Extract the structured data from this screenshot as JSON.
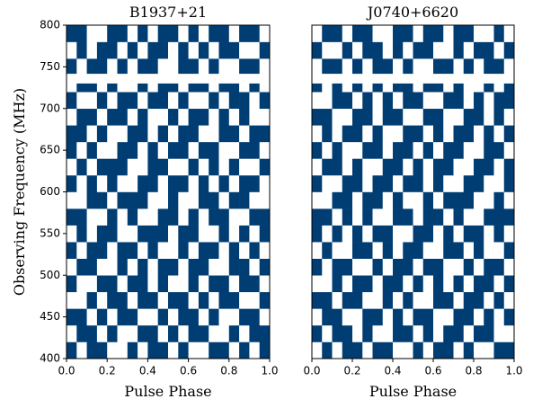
{
  "chart_data": [
    {
      "type": "heatmap",
      "title": "B1937+21",
      "xlabel": "Pulse Phase",
      "ylabel": "Observing Frequency (MHz)",
      "xlim": [
        0,
        1
      ],
      "ylim": [
        400,
        800
      ],
      "xticks": [
        {
          "value": 0,
          "label": "0.0"
        },
        {
          "value": 0.2,
          "label": "0.2"
        },
        {
          "value": 0.4,
          "label": "0.4"
        },
        {
          "value": 0.6,
          "label": "0.6"
        },
        {
          "value": 0.8,
          "label": "0.8"
        },
        {
          "value": 1,
          "label": "1.0"
        }
      ],
      "yticks": [
        400,
        450,
        500,
        550,
        600,
        650,
        700,
        750,
        800
      ],
      "xbins": [
        0,
        0.05,
        0.1,
        0.15,
        0.2,
        0.25,
        0.3,
        0.35,
        0.4,
        0.45,
        0.5,
        0.55,
        0.6,
        0.65,
        0.7,
        0.75,
        0.8,
        0.85,
        0.9,
        0.95,
        1
      ],
      "ybins": [
        400,
        420,
        440,
        460,
        480,
        500,
        520,
        540,
        560,
        580,
        600,
        620,
        640,
        660,
        680,
        700,
        720,
        730,
        742,
        760,
        780,
        800
      ],
      "colors": [
        "#ffffff",
        "#003d73"
      ],
      "values": [
        [
          1,
          0,
          1,
          1,
          0,
          0,
          1,
          0,
          1,
          1,
          0,
          1,
          0,
          0,
          1,
          1,
          0,
          1,
          0,
          1
        ],
        [
          0,
          1,
          1,
          0,
          1,
          0,
          0,
          1,
          1,
          0,
          1,
          0,
          1,
          1,
          0,
          0,
          1,
          0,
          1,
          1
        ],
        [
          1,
          1,
          0,
          1,
          0,
          1,
          1,
          0,
          0,
          1,
          0,
          1,
          1,
          0,
          1,
          0,
          0,
          1,
          1,
          0
        ],
        [
          0,
          0,
          1,
          0,
          1,
          1,
          0,
          1,
          1,
          0,
          1,
          1,
          0,
          1,
          0,
          1,
          1,
          0,
          0,
          1
        ],
        [
          1,
          0,
          0,
          1,
          1,
          0,
          1,
          1,
          0,
          1,
          0,
          0,
          1,
          0,
          1,
          1,
          0,
          1,
          1,
          0
        ],
        [
          0,
          1,
          1,
          0,
          0,
          1,
          0,
          1,
          0,
          1,
          1,
          0,
          1,
          1,
          0,
          0,
          1,
          1,
          0,
          1
        ],
        [
          1,
          0,
          1,
          1,
          0,
          1,
          1,
          0,
          1,
          0,
          0,
          1,
          0,
          1,
          1,
          0,
          1,
          0,
          1,
          0
        ],
        [
          0,
          1,
          0,
          1,
          1,
          0,
          0,
          1,
          1,
          1,
          0,
          1,
          1,
          0,
          0,
          1,
          0,
          1,
          0,
          1
        ],
        [
          1,
          1,
          0,
          0,
          1,
          0,
          1,
          0,
          0,
          1,
          1,
          0,
          1,
          0,
          1,
          1,
          0,
          0,
          1,
          1
        ],
        [
          0,
          0,
          1,
          1,
          0,
          1,
          1,
          1,
          0,
          0,
          1,
          0,
          0,
          1,
          1,
          0,
          1,
          1,
          0,
          0
        ],
        [
          1,
          0,
          1,
          0,
          1,
          0,
          0,
          1,
          1,
          0,
          1,
          1,
          0,
          1,
          0,
          1,
          0,
          1,
          1,
          0
        ],
        [
          0,
          1,
          0,
          1,
          1,
          1,
          0,
          0,
          1,
          1,
          0,
          0,
          1,
          0,
          1,
          0,
          1,
          0,
          0,
          1
        ],
        [
          1,
          0,
          1,
          0,
          0,
          1,
          1,
          0,
          1,
          0,
          1,
          1,
          0,
          1,
          1,
          0,
          0,
          1,
          1,
          0
        ],
        [
          1,
          1,
          0,
          1,
          0,
          0,
          1,
          1,
          0,
          1,
          0,
          1,
          1,
          0,
          0,
          1,
          1,
          0,
          1,
          1
        ],
        [
          0,
          1,
          1,
          0,
          1,
          1,
          0,
          1,
          0,
          0,
          1,
          0,
          1,
          1,
          0,
          1,
          0,
          1,
          0,
          0
        ],
        [
          1,
          0,
          0,
          1,
          0,
          1,
          1,
          0,
          1,
          1,
          0,
          1,
          0,
          0,
          1,
          0,
          1,
          1,
          0,
          1
        ],
        [
          0,
          1,
          1,
          0,
          1,
          0,
          0,
          1,
          0,
          1,
          1,
          0,
          1,
          1,
          0,
          1,
          1,
          0,
          1,
          0
        ],
        [
          null,
          null,
          null,
          null,
          null,
          null,
          null,
          null,
          null,
          null,
          null,
          null,
          null,
          null,
          null,
          null,
          null,
          null,
          null,
          null
        ],
        [
          1,
          0,
          1,
          1,
          0,
          1,
          0,
          1,
          1,
          0,
          0,
          1,
          1,
          0,
          1,
          0,
          0,
          1,
          1,
          0
        ],
        [
          0,
          1,
          0,
          1,
          1,
          0,
          1,
          0,
          1,
          1,
          0,
          1,
          0,
          1,
          0,
          1,
          1,
          0,
          0,
          1
        ],
        [
          1,
          1,
          0,
          0,
          1,
          1,
          0,
          1,
          0,
          1,
          1,
          0,
          1,
          0,
          1,
          1,
          0,
          1,
          1,
          0
        ]
      ]
    },
    {
      "type": "heatmap",
      "title": "J0740+6620",
      "xlabel": "Pulse Phase",
      "xlim": [
        0,
        1
      ],
      "ylim": [
        400,
        800
      ],
      "xticks": [
        {
          "value": 0,
          "label": "0.0"
        },
        {
          "value": 0.2,
          "label": "0.2"
        },
        {
          "value": 0.4,
          "label": "0.4"
        },
        {
          "value": 0.6,
          "label": "0.6"
        },
        {
          "value": 0.8,
          "label": "0.8"
        },
        {
          "value": 1,
          "label": "1.0"
        }
      ],
      "xbins": [
        0,
        0.05,
        0.1,
        0.15,
        0.2,
        0.25,
        0.3,
        0.35,
        0.4,
        0.45,
        0.5,
        0.55,
        0.6,
        0.65,
        0.7,
        0.75,
        0.8,
        0.85,
        0.9,
        0.95,
        1
      ],
      "ybins": [
        400,
        420,
        440,
        460,
        480,
        500,
        520,
        540,
        560,
        580,
        600,
        620,
        640,
        660,
        680,
        700,
        720,
        730,
        742,
        760,
        780,
        800
      ],
      "colors": [
        "#ffffff",
        "#003d73"
      ],
      "values": [
        [
          0,
          1,
          0,
          1,
          1,
          0,
          1,
          1,
          0,
          0,
          1,
          0,
          1,
          1,
          0,
          1,
          0,
          0,
          1,
          1
        ],
        [
          1,
          0,
          1,
          1,
          0,
          1,
          0,
          0,
          1,
          1,
          0,
          1,
          0,
          1,
          1,
          0,
          1,
          1,
          0,
          0
        ],
        [
          0,
          1,
          1,
          0,
          0,
          1,
          1,
          0,
          1,
          0,
          1,
          1,
          0,
          0,
          1,
          1,
          0,
          1,
          0,
          1
        ],
        [
          1,
          1,
          0,
          1,
          1,
          0,
          0,
          1,
          0,
          1,
          0,
          0,
          1,
          1,
          0,
          1,
          1,
          0,
          1,
          0
        ],
        [
          0,
          0,
          1,
          0,
          1,
          1,
          0,
          1,
          1,
          0,
          1,
          0,
          1,
          0,
          1,
          0,
          1,
          1,
          0,
          1
        ],
        [
          1,
          0,
          1,
          1,
          0,
          0,
          1,
          0,
          1,
          1,
          0,
          1,
          1,
          0,
          0,
          1,
          0,
          1,
          1,
          0
        ],
        [
          0,
          1,
          0,
          0,
          1,
          1,
          0,
          1,
          0,
          1,
          1,
          0,
          0,
          1,
          1,
          0,
          1,
          0,
          0,
          1
        ],
        [
          1,
          0,
          1,
          0,
          1,
          0,
          1,
          1,
          0,
          0,
          1,
          1,
          0,
          1,
          0,
          1,
          1,
          0,
          1,
          0
        ],
        [
          1,
          1,
          0,
          1,
          0,
          1,
          0,
          0,
          1,
          1,
          0,
          1,
          1,
          0,
          1,
          0,
          0,
          1,
          1,
          1
        ],
        [
          0,
          0,
          1,
          1,
          0,
          1,
          1,
          0,
          1,
          0,
          0,
          1,
          0,
          1,
          1,
          1,
          0,
          0,
          1,
          0
        ],
        [
          1,
          0,
          0,
          1,
          1,
          0,
          1,
          1,
          0,
          1,
          1,
          0,
          1,
          0,
          0,
          1,
          1,
          0,
          0,
          1
        ],
        [
          0,
          1,
          1,
          0,
          1,
          0,
          0,
          1,
          1,
          0,
          1,
          0,
          1,
          1,
          0,
          0,
          1,
          1,
          0,
          1
        ],
        [
          1,
          0,
          1,
          0,
          0,
          1,
          1,
          0,
          1,
          1,
          0,
          1,
          0,
          1,
          1,
          0,
          0,
          1,
          1,
          0
        ],
        [
          0,
          1,
          0,
          1,
          1,
          0,
          1,
          0,
          0,
          1,
          1,
          0,
          1,
          0,
          1,
          1,
          0,
          1,
          0,
          1
        ],
        [
          1,
          1,
          0,
          0,
          1,
          1,
          0,
          1,
          1,
          0,
          0,
          1,
          1,
          0,
          0,
          1,
          1,
          0,
          1,
          0
        ],
        [
          0,
          0,
          1,
          1,
          0,
          1,
          0,
          1,
          0,
          1,
          1,
          0,
          0,
          1,
          1,
          0,
          1,
          0,
          1,
          1
        ],
        [
          1,
          0,
          1,
          0,
          1,
          0,
          1,
          0,
          1,
          1,
          0,
          1,
          1,
          0,
          1,
          0,
          0,
          1,
          0,
          1
        ],
        [
          null,
          null,
          null,
          null,
          null,
          null,
          null,
          null,
          null,
          null,
          null,
          null,
          null,
          null,
          null,
          null,
          null,
          null,
          null,
          null
        ],
        [
          0,
          1,
          1,
          0,
          1,
          0,
          1,
          1,
          0,
          1,
          0,
          0,
          1,
          1,
          0,
          1,
          0,
          1,
          1,
          0
        ],
        [
          1,
          0,
          0,
          1,
          0,
          1,
          1,
          0,
          1,
          0,
          1,
          1,
          0,
          0,
          1,
          0,
          1,
          1,
          0,
          1
        ],
        [
          0,
          1,
          1,
          0,
          1,
          1,
          0,
          0,
          1,
          1,
          0,
          1,
          1,
          0,
          1,
          1,
          0,
          0,
          1,
          0
        ]
      ]
    }
  ]
}
